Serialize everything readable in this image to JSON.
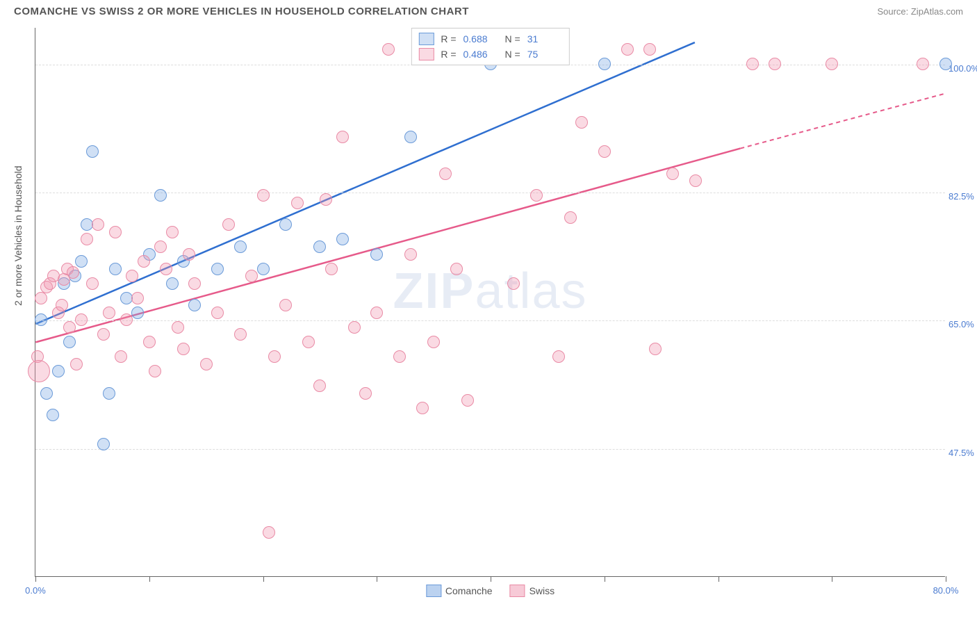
{
  "title": "COMANCHE VS SWISS 2 OR MORE VEHICLES IN HOUSEHOLD CORRELATION CHART",
  "source": "Source: ZipAtlas.com",
  "ylabel": "2 or more Vehicles in Household",
  "watermark_a": "ZIP",
  "watermark_b": "atlas",
  "chart": {
    "type": "scatter",
    "xlim": [
      0,
      80
    ],
    "ylim": [
      30,
      105
    ],
    "xticks": [
      0,
      10,
      20,
      30,
      40,
      50,
      60,
      70,
      80
    ],
    "xticklabels_shown": {
      "0": "0.0%",
      "80": "80.0%"
    },
    "yticks": [
      47.5,
      65.0,
      82.5,
      100.0
    ],
    "yticklabels": [
      "47.5%",
      "65.0%",
      "82.5%",
      "100.0%"
    ],
    "grid_color": "#dddddd",
    "background_color": "#ffffff",
    "axis_color": "#666666",
    "label_color": "#555555",
    "ticklabel_color": "#4a7bd0",
    "marker_radius": 9,
    "marker_stroke_width": 1.5,
    "series": [
      {
        "name": "Comanche",
        "fill": "rgba(120,165,225,0.35)",
        "stroke": "#6a9ad8",
        "R": "0.688",
        "N": "31",
        "trend": {
          "x1": 0,
          "y1": 64.5,
          "x2": 58,
          "y2": 103,
          "color": "#2f6fd0",
          "width": 2.5,
          "dash_extend": false
        },
        "points": [
          [
            0.5,
            65
          ],
          [
            1,
            55
          ],
          [
            1.5,
            52
          ],
          [
            2,
            58
          ],
          [
            2.5,
            70
          ],
          [
            3,
            62
          ],
          [
            3.5,
            71
          ],
          [
            4,
            73
          ],
          [
            4.5,
            78
          ],
          [
            5,
            88
          ],
          [
            6,
            48
          ],
          [
            6.5,
            55
          ],
          [
            7,
            72
          ],
          [
            8,
            68
          ],
          [
            9,
            66
          ],
          [
            10,
            74
          ],
          [
            11,
            82
          ],
          [
            12,
            70
          ],
          [
            13,
            73
          ],
          [
            14,
            67
          ],
          [
            16,
            72
          ],
          [
            18,
            75
          ],
          [
            20,
            72
          ],
          [
            22,
            78
          ],
          [
            25,
            75
          ],
          [
            27,
            76
          ],
          [
            30,
            74
          ],
          [
            33,
            90
          ],
          [
            40,
            100
          ],
          [
            50,
            100
          ],
          [
            80,
            100
          ]
        ]
      },
      {
        "name": "Swiss",
        "fill": "rgba(240,150,175,0.35)",
        "stroke": "#e98aa5",
        "R": "0.486",
        "N": "75",
        "trend": {
          "x1": 0,
          "y1": 62,
          "x2": 62,
          "y2": 88.5,
          "color": "#e65a8a",
          "width": 2.5,
          "dash_extend": true,
          "dash_to_x": 80,
          "dash_to_y": 96
        },
        "points": [
          [
            0.2,
            60
          ],
          [
            0.5,
            68
          ],
          [
            1,
            69.5
          ],
          [
            1.3,
            70
          ],
          [
            1.6,
            71
          ],
          [
            2,
            66
          ],
          [
            2.3,
            67
          ],
          [
            2.5,
            70.5
          ],
          [
            2.8,
            72
          ],
          [
            3,
            64
          ],
          [
            3.3,
            71.5
          ],
          [
            3.6,
            59
          ],
          [
            4,
            65
          ],
          [
            4.5,
            76
          ],
          [
            5,
            70
          ],
          [
            5.5,
            78
          ],
          [
            6,
            63
          ],
          [
            6.5,
            66
          ],
          [
            7,
            77
          ],
          [
            7.5,
            60
          ],
          [
            8,
            65
          ],
          [
            8.5,
            71
          ],
          [
            9,
            68
          ],
          [
            9.5,
            73
          ],
          [
            10,
            62
          ],
          [
            10.5,
            58
          ],
          [
            11,
            75
          ],
          [
            11.5,
            72
          ],
          [
            12,
            77
          ],
          [
            12.5,
            64
          ],
          [
            13,
            61
          ],
          [
            13.5,
            74
          ],
          [
            14,
            70
          ],
          [
            15,
            59
          ],
          [
            16,
            66
          ],
          [
            17,
            78
          ],
          [
            18,
            63
          ],
          [
            19,
            71
          ],
          [
            20,
            82
          ],
          [
            20.5,
            36
          ],
          [
            21,
            60
          ],
          [
            22,
            67
          ],
          [
            23,
            81
          ],
          [
            24,
            62
          ],
          [
            25,
            56
          ],
          [
            25.5,
            81.5
          ],
          [
            26,
            72
          ],
          [
            27,
            90
          ],
          [
            28,
            64
          ],
          [
            29,
            55
          ],
          [
            30,
            66
          ],
          [
            31,
            102
          ],
          [
            32,
            60
          ],
          [
            33,
            74
          ],
          [
            34,
            53
          ],
          [
            35,
            62
          ],
          [
            36,
            85
          ],
          [
            37,
            72
          ],
          [
            38,
            54
          ],
          [
            40,
            102
          ],
          [
            42,
            70
          ],
          [
            44,
            82
          ],
          [
            46,
            60
          ],
          [
            47,
            79
          ],
          [
            48,
            92
          ],
          [
            50,
            88
          ],
          [
            52,
            102
          ],
          [
            54,
            102
          ],
          [
            54.5,
            61
          ],
          [
            56,
            85
          ],
          [
            58,
            84
          ],
          [
            63,
            100
          ],
          [
            65,
            100
          ],
          [
            70,
            100
          ],
          [
            78,
            100
          ]
        ],
        "large_point": {
          "x": 0.3,
          "y": 58,
          "r": 16
        }
      }
    ],
    "legend_bottom": [
      {
        "label": "Comanche",
        "fill": "rgba(120,165,225,0.5)",
        "stroke": "#6a9ad8"
      },
      {
        "label": "Swiss",
        "fill": "rgba(240,150,175,0.5)",
        "stroke": "#e98aa5"
      }
    ]
  }
}
